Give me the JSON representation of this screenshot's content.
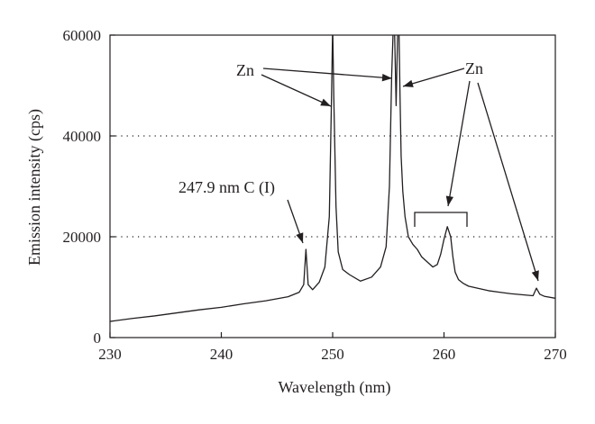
{
  "chart_data": {
    "type": "line",
    "xlabel": "Wavelength (nm)",
    "ylabel": "Emission intensity (cps)",
    "xlim": [
      230,
      270
    ],
    "ylim": [
      0,
      60000
    ],
    "x_ticks": [
      230,
      240,
      250,
      260,
      270
    ],
    "y_ticks": [
      0,
      20000,
      40000,
      60000
    ],
    "x_tick_labels": [
      "230",
      "240",
      "250",
      "260",
      "270"
    ],
    "y_tick_labels": [
      "0",
      "20000",
      "40000",
      "60000"
    ],
    "grid": "dotted horizontal lines at 20000 and 40000",
    "line_color": "#231f20",
    "series": [
      {
        "x": [
          230,
          232,
          234,
          236,
          238,
          240,
          242,
          244,
          246,
          247,
          247.4,
          247.6,
          247.8,
          248.2,
          248.8,
          249.3,
          249.7,
          249.9,
          250.0,
          250.1,
          250.3,
          250.5,
          250.9,
          251.5,
          252.5,
          253.5,
          254.3,
          254.8,
          255.1,
          255.3,
          255.45,
          255.55,
          255.7,
          255.85,
          255.95,
          256.05,
          256.15,
          256.3,
          256.5,
          256.8,
          257.2,
          257.6,
          258.0,
          258.5,
          259.0,
          259.4,
          259.7,
          260.0,
          260.3,
          260.6,
          260.8,
          261.0,
          261.3,
          261.7,
          262.2,
          263.0,
          264.0,
          265.0,
          266.0,
          267.0,
          268.0,
          268.3,
          268.6,
          269.0,
          270.0
        ],
        "y": [
          3200,
          3800,
          4300,
          4900,
          5500,
          6000,
          6700,
          7300,
          8100,
          9000,
          10500,
          17500,
          10500,
          9500,
          11000,
          14000,
          24000,
          48000,
          62000,
          48000,
          26000,
          17000,
          13500,
          12500,
          11200,
          12000,
          14000,
          18000,
          30000,
          52000,
          62000,
          62000,
          46000,
          62000,
          62000,
          48000,
          36000,
          29000,
          24000,
          20000,
          18500,
          17500,
          16000,
          15000,
          14000,
          14500,
          16500,
          19500,
          22000,
          20000,
          16000,
          13000,
          11500,
          10800,
          10200,
          9800,
          9300,
          9000,
          8700,
          8500,
          8300,
          9800,
          8600,
          8200,
          7800
        ]
      }
    ],
    "annotations": [
      {
        "text": "Zn",
        "note": "arrows to peaks near 250 and 255.7 nm"
      },
      {
        "text": "Zn",
        "note": "arrows to peaks near 256.1, 260.8 and 268.3 nm"
      },
      {
        "text": "247.9 nm C (I)",
        "note": "arrow to peak near 247.6 nm"
      }
    ]
  }
}
